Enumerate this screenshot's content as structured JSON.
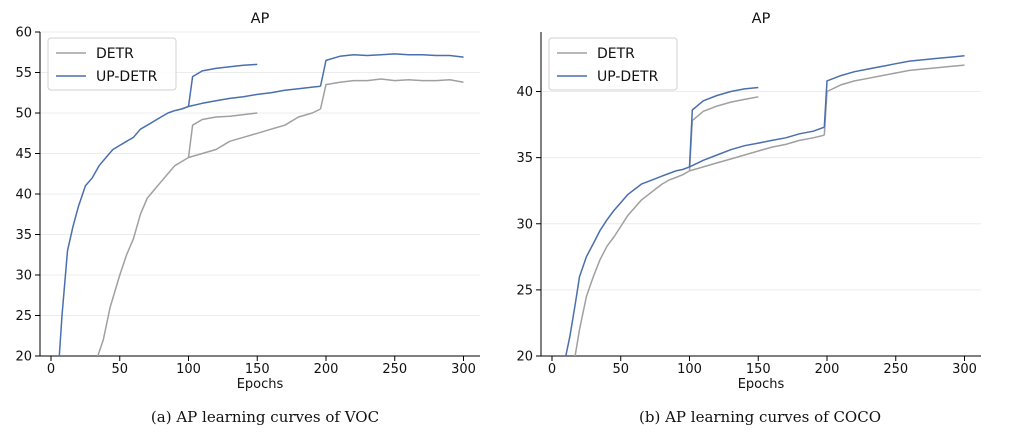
{
  "colors": {
    "detr": "#a0a0a0",
    "updetr": "#4a6fae",
    "grid": "#ececec",
    "axis": "#000000"
  },
  "captions": {
    "a": "(a) AP learning curves of VOC",
    "b": "(b) AP learning curves of COCO"
  },
  "chart_data": [
    {
      "type": "line",
      "title": "AP",
      "xlabel": "Epochs",
      "ylabel": "",
      "xlim": [
        -8,
        312
      ],
      "ylim": [
        20,
        60
      ],
      "xticks": [
        0,
        50,
        100,
        150,
        200,
        250,
        300
      ],
      "yticks": [
        20,
        25,
        30,
        35,
        40,
        45,
        50,
        55,
        60
      ],
      "grid": "horizontal",
      "legend": "top-left",
      "series": [
        {
          "name": "DETR",
          "segments": [
            {
              "x": [
                33,
                38,
                43,
                50,
                55,
                60,
                65,
                70,
                75,
                80,
                85,
                90,
                95,
                100
              ],
              "y": [
                19.5,
                22,
                26,
                30,
                32.5,
                34.5,
                37.5,
                39.5,
                40.5,
                41.5,
                42.5,
                43.5,
                44,
                44.5
              ]
            },
            {
              "x": [
                100,
                110,
                120,
                130,
                140,
                150,
                160,
                170,
                180,
                190,
                196
              ],
              "y": [
                44.5,
                45,
                45.5,
                46.5,
                47,
                47.5,
                48,
                48.5,
                49.5,
                50,
                50.5
              ]
            },
            {
              "x": [
                196,
                200,
                210,
                220,
                230,
                240,
                250,
                260,
                270,
                280,
                290,
                300
              ],
              "y": [
                50.5,
                53.5,
                53.8,
                54,
                54,
                54.2,
                54,
                54.1,
                54,
                54,
                54.1,
                53.8
              ]
            },
            {
              "x": [
                100,
                103,
                110,
                120,
                130,
                140,
                150
              ],
              "y": [
                44.5,
                48.5,
                49.2,
                49.5,
                49.6,
                49.8,
                50
              ]
            }
          ]
        },
        {
          "name": "UP-DETR",
          "segments": [
            {
              "x": [
                6,
                8,
                12,
                16,
                20,
                25,
                30,
                35,
                40,
                45,
                50,
                55,
                60,
                65,
                70,
                75,
                80,
                85,
                90,
                95,
                100
              ],
              "y": [
                20,
                25,
                33,
                36,
                38.5,
                41,
                42,
                43.5,
                44.5,
                45.5,
                46,
                46.5,
                47,
                48,
                48.5,
                49,
                49.5,
                50,
                50.3,
                50.5,
                50.8
              ]
            },
            {
              "x": [
                100,
                110,
                120,
                130,
                140,
                150,
                160,
                170,
                180,
                190,
                196
              ],
              "y": [
                50.8,
                51.2,
                51.5,
                51.8,
                52,
                52.3,
                52.5,
                52.8,
                53,
                53.2,
                53.3
              ]
            },
            {
              "x": [
                196,
                200,
                210,
                220,
                230,
                240,
                250,
                260,
                270,
                280,
                290,
                300
              ],
              "y": [
                53.3,
                56.5,
                57,
                57.2,
                57.1,
                57.2,
                57.3,
                57.2,
                57.2,
                57.1,
                57.1,
                56.9
              ]
            },
            {
              "x": [
                100,
                103,
                110,
                120,
                130,
                140,
                150
              ],
              "y": [
                50.8,
                54.5,
                55.2,
                55.5,
                55.7,
                55.9,
                56
              ]
            }
          ]
        }
      ]
    },
    {
      "type": "line",
      "title": "AP",
      "xlabel": "Epochs",
      "ylabel": "",
      "xlim": [
        -8,
        312
      ],
      "ylim": [
        20,
        44.5
      ],
      "xticks": [
        0,
        50,
        100,
        150,
        200,
        250,
        300
      ],
      "yticks": [
        20,
        25,
        30,
        35,
        40
      ],
      "grid": "horizontal",
      "legend": "top-left",
      "series": [
        {
          "name": "DETR",
          "segments": [
            {
              "x": [
                16,
                20,
                25,
                30,
                35,
                40,
                45,
                50,
                55,
                60,
                65,
                70,
                75,
                80,
                85,
                90,
                95,
                100
              ],
              "y": [
                19.5,
                22,
                24.5,
                26,
                27.3,
                28.3,
                29,
                29.8,
                30.6,
                31.2,
                31.8,
                32.2,
                32.6,
                33,
                33.3,
                33.5,
                33.7,
                34
              ]
            },
            {
              "x": [
                100,
                110,
                120,
                130,
                140,
                150,
                160,
                170,
                180,
                190,
                198
              ],
              "y": [
                34,
                34.3,
                34.6,
                34.9,
                35.2,
                35.5,
                35.8,
                36,
                36.3,
                36.5,
                36.7
              ]
            },
            {
              "x": [
                198,
                200,
                210,
                220,
                230,
                240,
                250,
                260,
                270,
                280,
                290,
                300
              ],
              "y": [
                36.7,
                40,
                40.5,
                40.8,
                41,
                41.2,
                41.4,
                41.6,
                41.7,
                41.8,
                41.9,
                42
              ]
            },
            {
              "x": [
                100,
                102,
                110,
                120,
                130,
                140,
                150
              ],
              "y": [
                34,
                37.8,
                38.5,
                38.9,
                39.2,
                39.4,
                39.6
              ]
            }
          ]
        },
        {
          "name": "UP-DETR",
          "segments": [
            {
              "x": [
                10,
                13,
                17,
                20,
                25,
                30,
                35,
                40,
                45,
                50,
                55,
                60,
                65,
                70,
                75,
                80,
                85,
                90,
                95,
                100
              ],
              "y": [
                20,
                21.5,
                24,
                26,
                27.5,
                28.5,
                29.5,
                30.3,
                31,
                31.6,
                32.2,
                32.6,
                33,
                33.2,
                33.4,
                33.6,
                33.8,
                34,
                34.1,
                34.3
              ]
            },
            {
              "x": [
                100,
                110,
                120,
                130,
                140,
                150,
                160,
                170,
                180,
                190,
                198
              ],
              "y": [
                34.3,
                34.8,
                35.2,
                35.6,
                35.9,
                36.1,
                36.3,
                36.5,
                36.8,
                37,
                37.3
              ]
            },
            {
              "x": [
                198,
                200,
                210,
                220,
                230,
                240,
                250,
                260,
                270,
                280,
                290,
                300
              ],
              "y": [
                37.3,
                40.8,
                41.2,
                41.5,
                41.7,
                41.9,
                42.1,
                42.3,
                42.4,
                42.5,
                42.6,
                42.7
              ]
            },
            {
              "x": [
                100,
                102,
                110,
                120,
                130,
                140,
                150
              ],
              "y": [
                34.3,
                38.6,
                39.3,
                39.7,
                40,
                40.2,
                40.3
              ]
            }
          ]
        }
      ]
    }
  ]
}
